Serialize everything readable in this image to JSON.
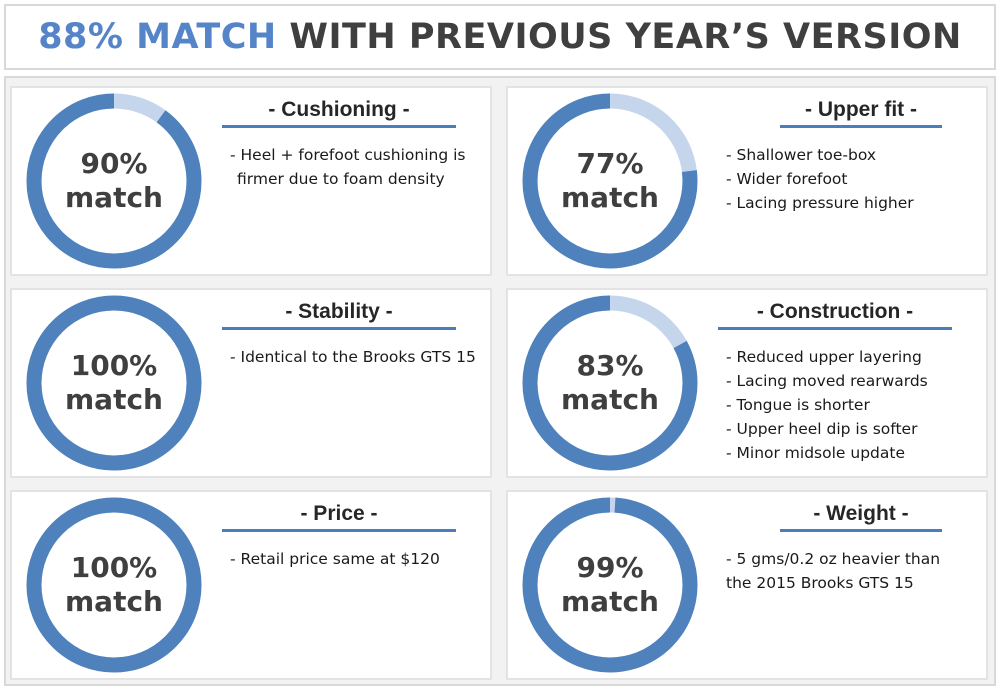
{
  "header": {
    "accent": "88% MATCH",
    "rest": "WITH PREVIOUS YEAR’S VERSION"
  },
  "colors": {
    "accent": "#5585c8",
    "ring": "#4f81bd",
    "ring_remainder": "#c5d6ec",
    "title_underline": "#4a7ebb"
  },
  "chart_data": {
    "type": "pie",
    "overall": {
      "value": 88,
      "text": "88% MATCH"
    },
    "categories": [
      "Cushioning",
      "Upper fit",
      "Stability",
      "Construction",
      "Price",
      "Weight"
    ],
    "values": [
      90,
      77,
      100,
      83,
      100,
      99
    ],
    "unit": "%",
    "max": 100
  },
  "panels": [
    {
      "title": "- Cushioning -",
      "percent": 90,
      "value_text": "90%",
      "match_text": "match",
      "notes": [
        "- Heel + forefoot cushioning is",
        "firmer due to foam density"
      ]
    },
    {
      "title": "- Upper fit -",
      "percent": 77,
      "value_text": "77%",
      "match_text": "match",
      "notes": [
        "- Shallower toe-box",
        "- Wider forefoot",
        "- Lacing pressure higher"
      ]
    },
    {
      "title": "- Stability -",
      "percent": 100,
      "value_text": "100%",
      "match_text": "match",
      "notes": [
        "- Identical to the Brooks GTS 15"
      ]
    },
    {
      "title": "- Construction -",
      "percent": 83,
      "value_text": "83%",
      "match_text": "match",
      "notes": [
        "- Reduced upper layering",
        "- Lacing moved rearwards",
        "- Tongue is shorter",
        "- Upper heel dip is softer",
        "- Minor midsole update"
      ]
    },
    {
      "title": "- Price -",
      "percent": 100,
      "value_text": "100%",
      "match_text": "match",
      "notes": [
        "-  Retail price same at $120"
      ]
    },
    {
      "title": "- Weight -",
      "percent": 99,
      "value_text": "99%",
      "match_text": "match",
      "notes": [
        "- 5 gms/0.2 oz heavier than",
        "the 2015 Brooks GTS 15"
      ]
    }
  ]
}
